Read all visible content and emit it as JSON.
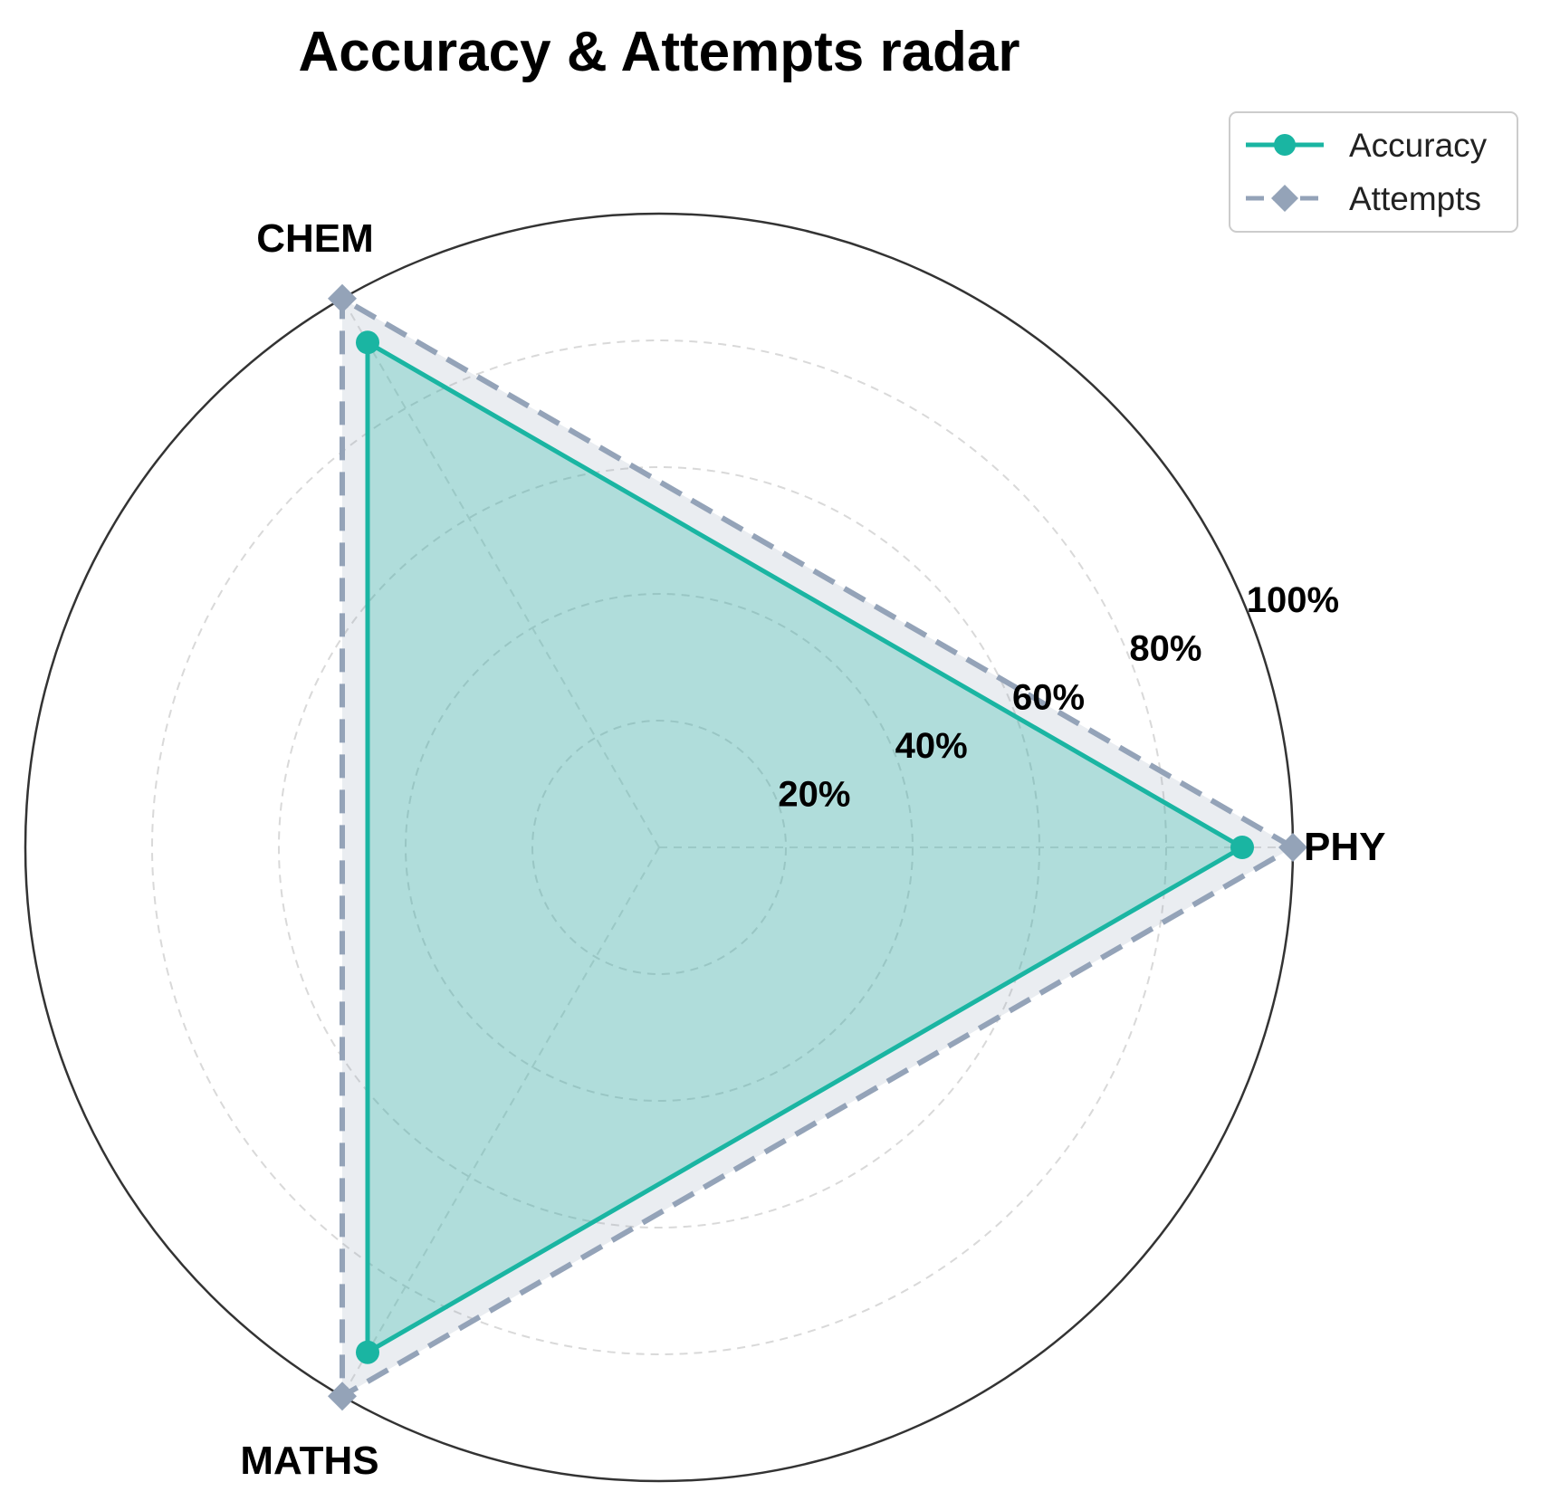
{
  "chart_data": {
    "type": "radar",
    "title": "Accuracy & Attempts radar",
    "categories": [
      "PHY",
      "CHEM",
      "MATHS"
    ],
    "rlim": [
      0,
      100
    ],
    "r_ticks": [
      20,
      40,
      60,
      80,
      100
    ],
    "r_tick_labels": [
      "20%",
      "40%",
      "60%",
      "80%",
      "100%"
    ],
    "grid": true,
    "legend_position": "top-right",
    "series": [
      {
        "name": "Accuracy",
        "values": [
          92,
          92,
          92
        ],
        "color": "#1ab5a2",
        "marker": "circle",
        "linestyle": "solid",
        "filled": true
      },
      {
        "name": "Attempts",
        "values": [
          100,
          100,
          100
        ],
        "color": "#94a3b8",
        "marker": "diamond",
        "linestyle": "dashed",
        "filled": true
      }
    ]
  }
}
